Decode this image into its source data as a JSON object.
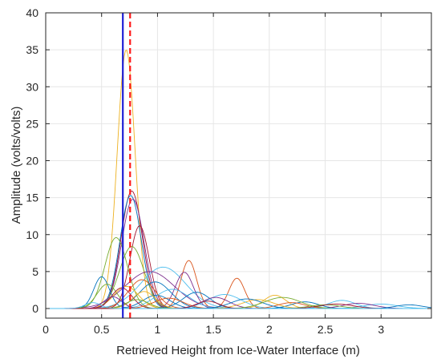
{
  "chart_data": {
    "type": "line",
    "title": "",
    "xlabel": "Retrieved Height from Ice-Water Interface (m)",
    "ylabel": "Amplitude (volts/volts)",
    "xlim": [
      0,
      3.45
    ],
    "ylim": [
      -1.3,
      40
    ],
    "grid": true,
    "xticks": [
      0,
      0.5,
      1,
      1.5,
      2,
      2.5,
      3
    ],
    "xtick_labels": [
      "0",
      "0.5",
      "1",
      "1.5",
      "2",
      "2.5",
      "3"
    ],
    "yticks": [
      0,
      5,
      10,
      15,
      20,
      25,
      30,
      35,
      40
    ],
    "ytick_labels": [
      "0",
      "5",
      "10",
      "15",
      "20",
      "25",
      "30",
      "35",
      "40"
    ],
    "vertical_lines": [
      {
        "x": 0.69,
        "color": "#1f1fd6",
        "style": "solid"
      },
      {
        "x": 0.755,
        "color": "#ff1a1a",
        "style": "dashed"
      }
    ],
    "series_colors": [
      "#0072BD",
      "#D95319",
      "#EDB120",
      "#7E2F8E",
      "#77AC30",
      "#4DBEEE",
      "#A2142F"
    ],
    "series": [
      {
        "peaks": [
          [
            0.72,
            35.0,
            0.08
          ]
        ],
        "color_index": 2
      },
      {
        "peaks": [
          [
            0.77,
            15.9,
            0.095
          ]
        ],
        "color_index": 6
      },
      {
        "peaks": [
          [
            0.76,
            15.3,
            0.095
          ]
        ],
        "color_index": 0
      },
      {
        "peaks": [
          [
            0.78,
            14.8,
            0.1
          ]
        ],
        "color_index": 3
      },
      {
        "peaks": [
          [
            0.84,
            11.2,
            0.085
          ]
        ],
        "color_index": 6
      },
      {
        "peaks": [
          [
            0.63,
            9.6,
            0.1
          ]
        ],
        "color_index": 4
      },
      {
        "peaks": [
          [
            0.77,
            8.4,
            0.11
          ]
        ],
        "color_index": 4
      },
      {
        "peaks": [
          [
            1.05,
            5.6,
            0.2
          ]
        ],
        "color_index": 5
      },
      {
        "peaks": [
          [
            0.93,
            5.0,
            0.22
          ]
        ],
        "color_index": 3
      },
      {
        "peaks": [
          [
            1.28,
            6.5,
            0.07
          ]
        ],
        "color_index": 1
      },
      {
        "peaks": [
          [
            1.71,
            4.1,
            0.07
          ]
        ],
        "color_index": 1
      },
      {
        "peaks": [
          [
            1.24,
            4.9,
            0.08
          ]
        ],
        "color_index": 3
      },
      {
        "peaks": [
          [
            0.5,
            4.3,
            0.07
          ],
          [
            0.99,
            1.8,
            0.12
          ]
        ],
        "color_index": 0
      },
      {
        "peaks": [
          [
            0.55,
            3.3,
            0.09
          ]
        ],
        "color_index": 4
      },
      {
        "peaks": [
          [
            0.86,
            3.9,
            0.12
          ]
        ],
        "color_index": 1
      },
      {
        "peaks": [
          [
            0.98,
            3.6,
            0.14
          ]
        ],
        "color_index": 0
      },
      {
        "peaks": [
          [
            0.72,
            3.0,
            0.11
          ],
          [
            2.05,
            1.8,
            0.1
          ]
        ],
        "color_index": 2
      },
      {
        "peaks": [
          [
            1.13,
            2.6,
            0.15
          ],
          [
            2.65,
            1.1,
            0.12
          ]
        ],
        "color_index": 5
      },
      {
        "peaks": [
          [
            0.68,
            2.8,
            0.09
          ]
        ],
        "color_index": 6
      },
      {
        "peaks": [
          [
            1.35,
            2.2,
            0.12
          ],
          [
            2.32,
            0.9,
            0.12
          ]
        ],
        "color_index": 0
      },
      {
        "peaks": [
          [
            0.88,
            2.3,
            0.1
          ],
          [
            1.9,
            1.2,
            0.14
          ]
        ],
        "color_index": 2
      },
      {
        "peaks": [
          [
            1.6,
            1.9,
            0.15
          ],
          [
            3.0,
            0.6,
            0.15
          ]
        ],
        "color_index": 5
      },
      {
        "peaks": [
          [
            1.52,
            1.5,
            0.12
          ],
          [
            2.8,
            0.7,
            0.14
          ]
        ],
        "color_index": 3
      },
      {
        "peaks": [
          [
            0.6,
            1.6,
            0.08
          ]
        ],
        "color_index": 3
      },
      {
        "peaks": [
          [
            1.1,
            1.4,
            0.13
          ],
          [
            2.2,
            0.8,
            0.12
          ]
        ],
        "color_index": 1
      },
      {
        "peaks": [
          [
            0.82,
            1.2,
            0.1
          ],
          [
            2.5,
            0.5,
            0.14
          ]
        ],
        "color_index": 4
      },
      {
        "peaks": [
          [
            1.8,
            1.3,
            0.14
          ],
          [
            3.25,
            0.5,
            0.12
          ]
        ],
        "color_index": 0
      },
      {
        "peaks": [
          [
            2.12,
            1.5,
            0.16
          ]
        ],
        "color_index": 4
      },
      {
        "peaks": [
          [
            1.45,
            1.0,
            0.1
          ],
          [
            2.6,
            0.6,
            0.15
          ]
        ],
        "color_index": 6
      },
      {
        "peaks": [
          [
            0.42,
            0.8,
            0.07
          ]
        ],
        "color_index": 5
      }
    ]
  }
}
